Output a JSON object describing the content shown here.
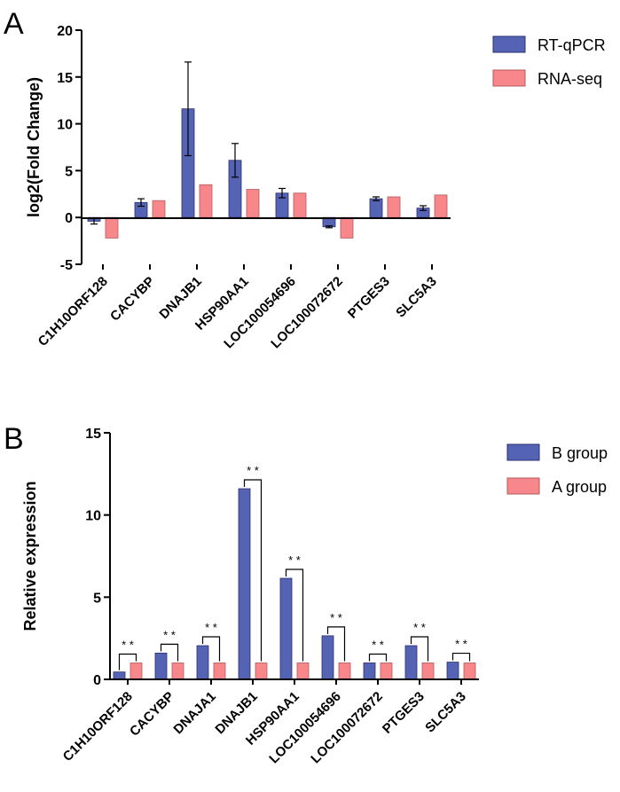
{
  "panel_labels": [
    "A",
    "B"
  ],
  "colors": {
    "series1": "#5563b5",
    "series2": "#f7878a",
    "axis": "#000000"
  },
  "chart_data": [
    {
      "type": "bar",
      "panel": "A",
      "title": "",
      "xlabel": "",
      "ylabel": "log2(Fold Change)",
      "ylim": [
        -5,
        20
      ],
      "yticks": [
        -5,
        0,
        5,
        10,
        15,
        20
      ],
      "ytick_labels": [
        "-5",
        "0",
        "5",
        "10",
        "15",
        "20"
      ],
      "categories": [
        "C1H10ORF128",
        "CACYBP",
        "DNAJB1",
        "HSP90AA1",
        "LOC100054696",
        "LOC100072672",
        "PTGES3",
        "SLC5A3"
      ],
      "series": [
        {
          "name": "RT-qPCR",
          "values": [
            -0.4,
            1.6,
            11.6,
            6.1,
            2.6,
            -1.0,
            2.0,
            1.0
          ],
          "errors": [
            0.3,
            0.4,
            5.0,
            1.8,
            0.5,
            0.1,
            0.2,
            0.25
          ]
        },
        {
          "name": "RNA-seq",
          "values": [
            -2.2,
            1.8,
            3.5,
            3.0,
            2.6,
            -2.2,
            2.2,
            2.4
          ]
        }
      ],
      "legend": "top-right"
    },
    {
      "type": "bar",
      "panel": "B",
      "title": "",
      "xlabel": "",
      "ylabel": "Relative  expression",
      "ylim": [
        0,
        15
      ],
      "yticks": [
        0,
        5,
        10,
        15
      ],
      "ytick_labels": [
        "0",
        "5",
        "10",
        "15"
      ],
      "categories": [
        "C1H10ORF128",
        "CACYBP",
        "DNAJA1",
        "DNAJB1",
        "HSP90AA1",
        "LOC100054696",
        "LOC100072672",
        "PTGES3",
        "SLC5A3"
      ],
      "series": [
        {
          "name": "B group",
          "values": [
            0.45,
            1.6,
            2.05,
            11.6,
            6.15,
            2.65,
            1.0,
            2.05,
            1.05
          ]
        },
        {
          "name": "A group",
          "values": [
            1.0,
            1.0,
            1.0,
            1.0,
            1.0,
            1.0,
            1.0,
            1.0,
            1.0
          ]
        }
      ],
      "significance": [
        "* *",
        "* *",
        "* *",
        "* *",
        "* *",
        "* *",
        "* *",
        "* *",
        "* *"
      ],
      "legend": "top-right"
    }
  ]
}
